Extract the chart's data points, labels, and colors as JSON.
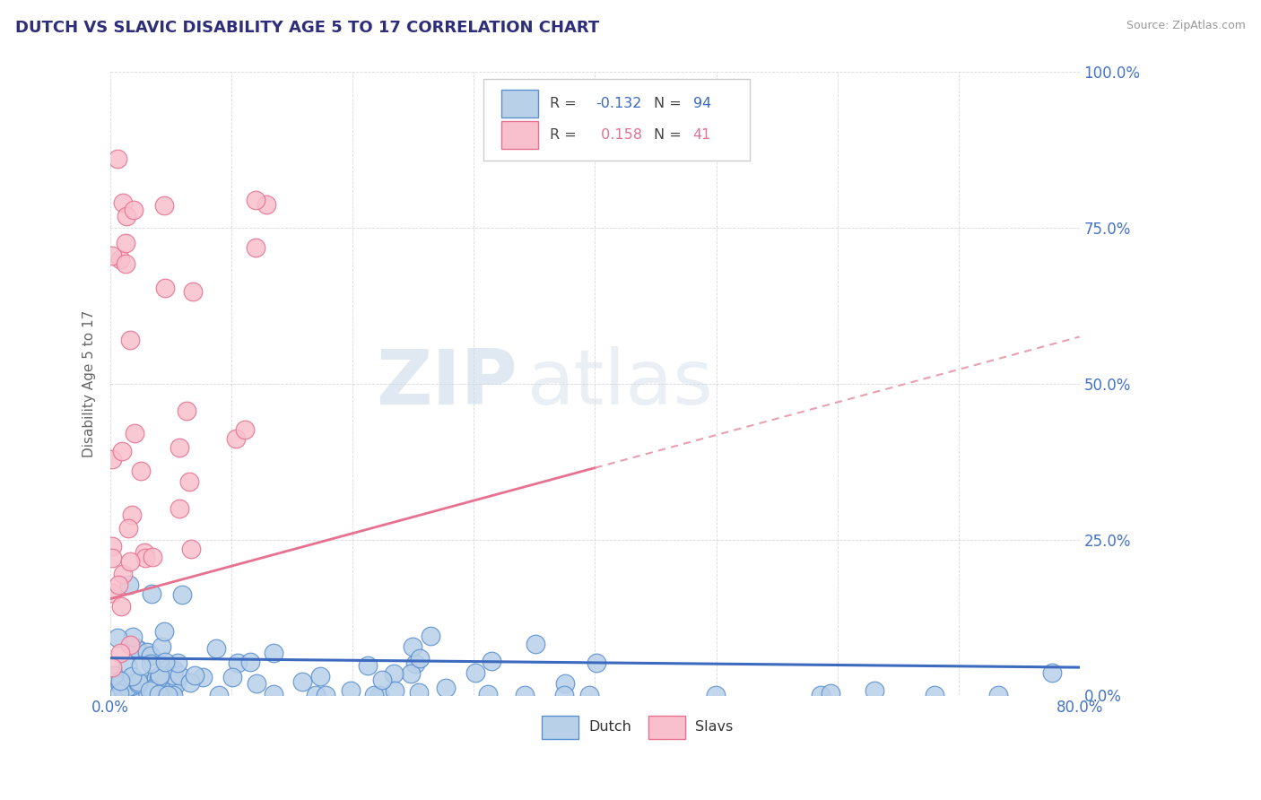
{
  "title": "DUTCH VS SLAVIC DISABILITY AGE 5 TO 17 CORRELATION CHART",
  "source_text": "Source: ZipAtlas.com",
  "ylabel": "Disability Age 5 to 17",
  "xlim": [
    0.0,
    0.8
  ],
  "ylim": [
    0.0,
    1.0
  ],
  "xtick_vals": [
    0.0,
    0.1,
    0.2,
    0.3,
    0.4,
    0.5,
    0.6,
    0.7,
    0.8
  ],
  "ytick_vals": [
    0.0,
    0.25,
    0.5,
    0.75,
    1.0
  ],
  "ytick_labels": [
    "0.0%",
    "25.0%",
    "50.0%",
    "75.0%",
    "100.0%"
  ],
  "dutch_fill": "#b8d0e8",
  "dutch_edge": "#5a8fd0",
  "slavs_fill": "#f8c0cc",
  "slavs_edge": "#e87090",
  "dutch_line_color": "#3b6abf",
  "slavs_line_solid_color": "#e87090",
  "slavs_line_dash_color": "#e8a0b0",
  "right_axis_color": "#4472c4",
  "title_color": "#2d2d7a",
  "watermark_color": "#c8d8e8",
  "legend_R_dutch": "-0.132",
  "legend_N_dutch": "94",
  "legend_R_slavs": "0.158",
  "legend_N_slavs": "41",
  "grid_color": "#c8c8c8",
  "dutch_trend": [
    0.0,
    0.8,
    0.06,
    0.045
  ],
  "slavs_trend_solid": [
    0.0,
    0.4,
    0.155,
    0.365
  ],
  "slavs_trend_dash": [
    0.4,
    0.8,
    0.365,
    0.575
  ]
}
